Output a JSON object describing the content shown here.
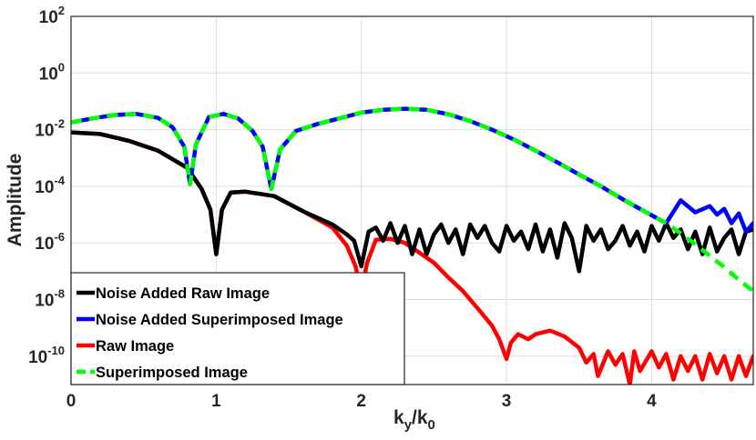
{
  "chart_data": {
    "type": "line",
    "xlabel": "k_y/k_0",
    "ylabel": "Amplitude",
    "yscale": "log",
    "xlim": [
      0,
      4.7
    ],
    "ylim": [
      1e-11,
      100
    ],
    "grid": true,
    "legend_position": "bottom-left",
    "x_ticks": [
      {
        "value": 0,
        "label": "0"
      },
      {
        "value": 1,
        "label": "1"
      },
      {
        "value": 2,
        "label": "2"
      },
      {
        "value": 3,
        "label": "3"
      },
      {
        "value": 4,
        "label": "4"
      }
    ],
    "y_ticks": [
      {
        "value": 100,
        "base": "10",
        "exp": "2"
      },
      {
        "value": 1,
        "base": "10",
        "exp": "0"
      },
      {
        "value": 0.01,
        "base": "10",
        "exp": "-2"
      },
      {
        "value": 0.0001,
        "base": "10",
        "exp": "-4"
      },
      {
        "value": 1e-06,
        "base": "10",
        "exp": "-6"
      },
      {
        "value": 1e-08,
        "base": "10",
        "exp": "-8"
      },
      {
        "value": 1e-10,
        "base": "10",
        "exp": "-10"
      }
    ],
    "series": [
      {
        "name": "Noise Added Raw Image",
        "color": "#000000",
        "dash": "",
        "x": [
          0,
          0.2,
          0.4,
          0.6,
          0.8,
          0.9,
          0.96,
          1.0,
          1.04,
          1.1,
          1.2,
          1.4,
          1.6,
          1.8,
          1.9,
          1.95,
          2.0,
          2.05,
          2.1,
          2.15,
          2.2,
          2.25,
          2.3,
          2.35,
          2.4,
          2.45,
          2.5,
          2.55,
          2.6,
          2.65,
          2.7,
          2.75,
          2.8,
          2.85,
          2.9,
          2.95,
          3.0,
          3.05,
          3.1,
          3.15,
          3.2,
          3.25,
          3.3,
          3.35,
          3.4,
          3.45,
          3.5,
          3.55,
          3.6,
          3.65,
          3.7,
          3.75,
          3.8,
          3.85,
          3.9,
          3.95,
          4.0,
          4.05,
          4.1,
          4.15,
          4.2,
          4.25,
          4.3,
          4.35,
          4.4,
          4.45,
          4.5,
          4.55,
          4.6,
          4.65,
          4.7
        ],
        "y": [
          0.008,
          0.007,
          0.004,
          0.0018,
          0.00045,
          8e-05,
          1.5e-05,
          4e-07,
          1.5e-05,
          6e-05,
          6.5e-05,
          4.5e-05,
          1.3e-05,
          4.5e-06,
          2e-06,
          1.2e-06,
          1.5e-07,
          2.5e-06,
          3.5e-06,
          1.2e-06,
          5e-06,
          1e-06,
          4e-06,
          4e-07,
          3e-06,
          4e-07,
          2e-06,
          4.5e-06,
          1e-06,
          3e-06,
          4e-07,
          4.5e-06,
          1.5e-06,
          4e-06,
          1e-06,
          5e-07,
          4e-06,
          1.2e-06,
          2.5e-06,
          6e-07,
          4.5e-06,
          5e-07,
          3e-06,
          3e-07,
          5e-06,
          1.5e-06,
          1e-07,
          4e-06,
          1.2e-06,
          3e-06,
          6e-07,
          1.2e-06,
          4e-06,
          8e-07,
          2.5e-06,
          5e-07,
          4e-06,
          1.2e-06,
          5e-06,
          1.5e-06,
          3e-06,
          6e-07,
          2.5e-06,
          4e-07,
          3.5e-06,
          5e-07,
          1.5e-06,
          3e-06,
          4e-07,
          2.5e-06,
          3e-06
        ]
      },
      {
        "name": "Noise Added Superimposed Image",
        "color": "#0000ff",
        "dash": "",
        "x": [
          0,
          0.15,
          0.3,
          0.45,
          0.6,
          0.7,
          0.78,
          0.82,
          0.86,
          0.95,
          1.05,
          1.15,
          1.25,
          1.32,
          1.38,
          1.44,
          1.55,
          1.7,
          1.85,
          2.0,
          2.15,
          2.3,
          2.45,
          2.6,
          2.75,
          2.9,
          3.05,
          3.2,
          3.35,
          3.5,
          3.65,
          3.8,
          3.95,
          4.1,
          4.2,
          4.3,
          4.4,
          4.45,
          4.5,
          4.55,
          4.6,
          4.65,
          4.7
        ],
        "y": [
          0.018,
          0.025,
          0.033,
          0.036,
          0.026,
          0.012,
          0.0025,
          0.00012,
          0.003,
          0.028,
          0.036,
          0.025,
          0.009,
          0.0025,
          8e-05,
          0.002,
          0.009,
          0.016,
          0.025,
          0.04,
          0.05,
          0.055,
          0.05,
          0.035,
          0.02,
          0.01,
          0.0045,
          0.0018,
          0.0007,
          0.00026,
          0.0001,
          3.5e-05,
          1.3e-05,
          5e-06,
          3.2e-05,
          1.2e-05,
          2e-05,
          1e-05,
          1.6e-05,
          5e-06,
          1.1e-05,
          2.5e-06,
          5e-06
        ]
      },
      {
        "name": "Raw Image",
        "color": "#ff0000",
        "dash": "",
        "x": [
          0,
          0.2,
          0.4,
          0.6,
          0.8,
          0.9,
          0.96,
          1.0,
          1.04,
          1.1,
          1.2,
          1.4,
          1.6,
          1.8,
          1.9,
          1.96,
          2.0,
          2.04,
          2.1,
          2.2,
          2.3,
          2.4,
          2.5,
          2.6,
          2.7,
          2.8,
          2.9,
          2.95,
          3.0,
          3.03,
          3.08,
          3.15,
          3.2,
          3.3,
          3.4,
          3.5,
          3.55,
          3.6,
          3.63,
          3.7,
          3.75,
          3.8,
          3.85,
          3.88,
          3.92,
          4.0,
          4.05,
          4.1,
          4.15,
          4.2,
          4.25,
          4.3,
          4.35,
          4.4,
          4.45,
          4.5,
          4.55,
          4.6,
          4.65,
          4.7
        ],
        "y": [
          0.008,
          0.007,
          0.004,
          0.0018,
          0.00045,
          8e-05,
          1.5e-05,
          4e-07,
          1.5e-05,
          6e-05,
          6.5e-05,
          4.5e-05,
          1.3e-05,
          3.5e-06,
          8e-07,
          1.5e-07,
          2e-08,
          2e-07,
          1.3e-06,
          1.4e-06,
          1e-06,
          4.5e-07,
          2e-07,
          6e-08,
          2e-08,
          5e-09,
          1.2e-09,
          4e-10,
          8e-11,
          3e-10,
          6e-10,
          4e-10,
          6e-10,
          8e-10,
          5e-10,
          2e-10,
          6e-11,
          1.2e-10,
          2e-11,
          1.5e-10,
          5e-11,
          1.2e-10,
          1e-11,
          1.5e-10,
          3e-11,
          1.5e-10,
          4e-11,
          1.2e-10,
          1.5e-11,
          1e-10,
          3e-11,
          1e-10,
          1.5e-11,
          1.2e-10,
          2.5e-11,
          1e-10,
          1.5e-11,
          1e-10,
          2e-11,
          1e-10
        ]
      },
      {
        "name": "Superimposed Image",
        "color": "#00ff00",
        "dash": "12,8",
        "x": [
          0,
          0.15,
          0.3,
          0.45,
          0.6,
          0.7,
          0.78,
          0.82,
          0.86,
          0.95,
          1.05,
          1.15,
          1.25,
          1.32,
          1.38,
          1.44,
          1.55,
          1.7,
          1.85,
          2.0,
          2.15,
          2.3,
          2.45,
          2.6,
          2.75,
          2.9,
          3.05,
          3.2,
          3.35,
          3.5,
          3.65,
          3.8,
          3.95,
          4.1,
          4.2,
          4.3,
          4.4,
          4.5,
          4.6,
          4.7
        ],
        "y": [
          0.018,
          0.025,
          0.033,
          0.036,
          0.026,
          0.012,
          0.0025,
          0.00012,
          0.003,
          0.028,
          0.036,
          0.025,
          0.009,
          0.0025,
          8e-05,
          0.002,
          0.009,
          0.016,
          0.025,
          0.04,
          0.05,
          0.055,
          0.05,
          0.035,
          0.02,
          0.01,
          0.0045,
          0.0018,
          0.0007,
          0.00026,
          0.0001,
          3.5e-05,
          1.3e-05,
          5e-06,
          2.2e-06,
          9e-07,
          3.5e-07,
          1.4e-07,
          5e-08,
          2e-08
        ]
      }
    ]
  }
}
